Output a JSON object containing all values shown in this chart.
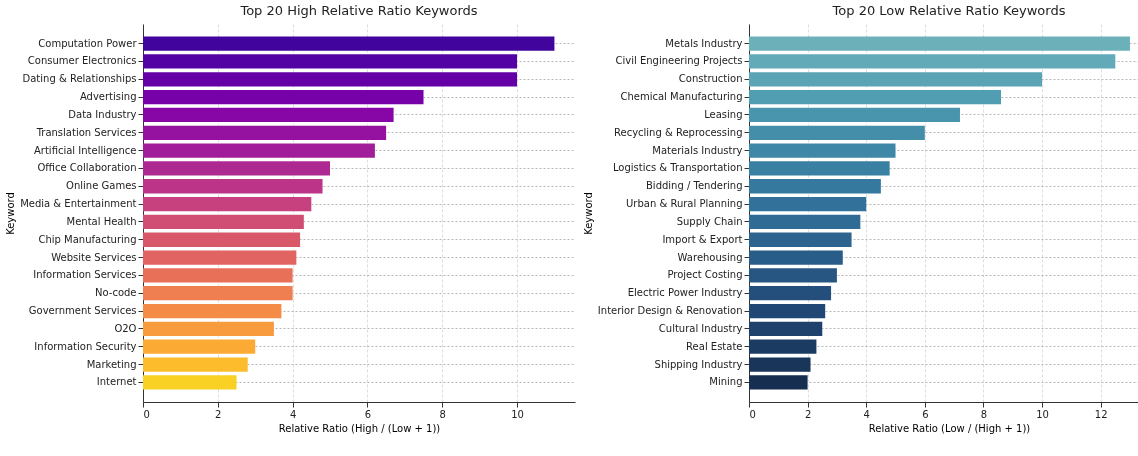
{
  "chart_data": [
    {
      "type": "bar",
      "orientation": "horizontal",
      "title": "Top 20 High Relative Ratio Keywords",
      "xlabel": "Relative Ratio (High / (Low + 1))",
      "ylabel": "Keyword",
      "categories": [
        "Computation Power",
        "Consumer Electronics",
        "Dating & Relationships",
        "Advertising",
        "Data Industry",
        "Translation Services",
        "Artificial Intelligence",
        "Office Collaboration",
        "Online Games",
        "Media & Entertainment",
        "Mental Health",
        "Chip Manufacturing",
        "Website Services",
        "Information Services",
        "No-code",
        "Government Services",
        "O2O",
        "Information Security",
        "Marketing",
        "Internet"
      ],
      "values": [
        11,
        10,
        10,
        7.5,
        6.7,
        6.5,
        6.2,
        5,
        4.8,
        4.5,
        4.3,
        4.2,
        4.1,
        4.0,
        4.0,
        3.7,
        3.5,
        3.0,
        2.8,
        2.5
      ],
      "colors": [
        "#41049d",
        "#5302a3",
        "#6500a7",
        "#7601a8",
        "#8707a6",
        "#9512a1",
        "#a21d9a",
        "#ae2892",
        "#bb3488",
        "#c6417d",
        "#d04d73",
        "#d8586a",
        "#e16462",
        "#e87059",
        "#ef7e50",
        "#f48b47",
        "#f89b3e",
        "#fbab34",
        "#fcbc2b",
        "#f9d024"
      ],
      "xlim": [
        0,
        11.55
      ],
      "xticks": [
        0,
        2,
        4,
        6,
        8,
        10
      ],
      "grid": true
    },
    {
      "type": "bar",
      "orientation": "horizontal",
      "title": "Top 20 Low Relative Ratio Keywords",
      "xlabel": "Relative Ratio (Low / (High + 1))",
      "ylabel": "Keyword",
      "categories": [
        "Metals Industry",
        "Civil Engineering Projects",
        "Construction",
        "Chemical Manufacturing",
        "Leasing",
        "Recycling & Reprocessing",
        "Materials Industry",
        "Logistics & Transportation",
        "Bidding / Tendering",
        "Urban & Rural Planning",
        "Supply Chain",
        "Import & Export",
        "Warehousing",
        "Project Costing",
        "Electric Power Industry",
        "Interior Design & Renovation",
        "Cultural Industry",
        "Real Estate",
        "Shipping Industry",
        "Mining"
      ],
      "values": [
        13,
        12.5,
        10,
        8.6,
        7.2,
        6,
        5,
        4.8,
        4.5,
        4,
        3.8,
        3.5,
        3.2,
        3,
        2.8,
        2.6,
        2.5,
        2.3,
        2.1,
        2
      ],
      "colors": [
        "#6cb1b9",
        "#62aab8",
        "#5aa4b5",
        "#519db1",
        "#4a95ae",
        "#448eaa",
        "#3e87a6",
        "#3980a3",
        "#35799e",
        "#32729a",
        "#2f6b95",
        "#2c648f",
        "#295d89",
        "#275683",
        "#244f7c",
        "#214874",
        "#1f426c",
        "#1c3b63",
        "#19355a",
        "#162f51"
      ],
      "xlim": [
        0,
        13.65
      ],
      "xticks": [
        0,
        2,
        4,
        6,
        8,
        10,
        12
      ],
      "grid": true
    }
  ]
}
